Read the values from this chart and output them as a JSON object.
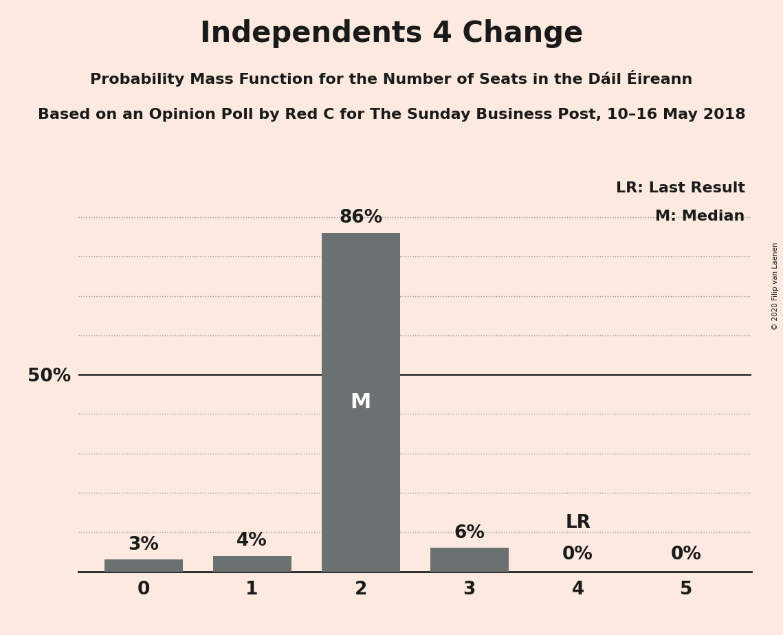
{
  "title": "Independents 4 Change",
  "subtitle1": "Probability Mass Function for the Number of Seats in the Dáil Éireann",
  "subtitle2": "Based on an Opinion Poll by Red C for The Sunday Business Post, 10–16 May 2018",
  "copyright": "© 2020 Filip van Laenen",
  "categories": [
    0,
    1,
    2,
    3,
    4,
    5
  ],
  "values": [
    3,
    4,
    86,
    6,
    0,
    0
  ],
  "bar_color": "#6b7070",
  "background_color": "#fce9df",
  "ylim": [
    0,
    100
  ],
  "ytick_values": [
    50
  ],
  "ytick_labels": [
    "50%"
  ],
  "median_bar": 2,
  "last_result_bar": 4,
  "legend_lr": "LR: Last Result",
  "legend_m": "M: Median",
  "grid_color": "#999999",
  "title_fontsize": 30,
  "subtitle_fontsize": 16,
  "bar_label_fontsize": 19,
  "axis_fontsize": 19,
  "legend_fontsize": 16,
  "median_label_fontsize": 22
}
